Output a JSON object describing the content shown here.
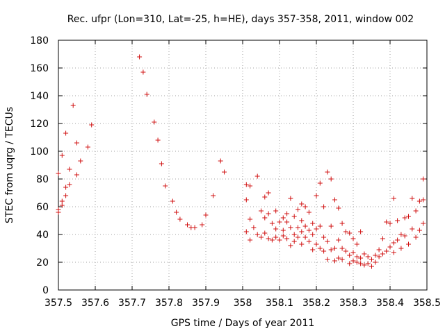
{
  "chart_data": {
    "type": "scatter",
    "title": "Rec. ufpr (Lon=310, Lat=-25, h=HE), days 357-358, 2011, window 002",
    "xlabel": "GPS time / Days of year 2011",
    "ylabel": "STEC from uqrg / TECUs",
    "xlim": [
      357.5,
      358.5
    ],
    "ylim": [
      0,
      180
    ],
    "grid": true,
    "marker": "+",
    "color": "#d01010",
    "x_ticks": [
      357.5,
      357.6,
      357.7,
      357.8,
      357.9,
      358.0,
      358.1,
      358.2,
      358.3,
      358.4,
      358.5
    ],
    "x_tick_labels": [
      "357.5",
      "357.6",
      "357.7",
      "357.8",
      "357.9",
      "358",
      "358.1",
      "358.2",
      "358.3",
      "358.4",
      "358.5"
    ],
    "y_ticks": [
      0,
      20,
      40,
      60,
      80,
      100,
      120,
      140,
      160,
      180
    ],
    "y_tick_labels": [
      "0",
      "20",
      "40",
      "60",
      "80",
      "100",
      "120",
      "140",
      "160",
      "180"
    ],
    "series": [
      {
        "name": "STEC",
        "points": [
          [
            357.5,
            84
          ],
          [
            357.5,
            58
          ],
          [
            357.5,
            56
          ],
          [
            357.51,
            64
          ],
          [
            357.51,
            61
          ],
          [
            357.51,
            97
          ],
          [
            357.52,
            68
          ],
          [
            357.52,
            74
          ],
          [
            357.52,
            113
          ],
          [
            357.53,
            76
          ],
          [
            357.53,
            87
          ],
          [
            357.54,
            133
          ],
          [
            357.55,
            83
          ],
          [
            357.55,
            106
          ],
          [
            357.56,
            93
          ],
          [
            357.58,
            103
          ],
          [
            357.59,
            119
          ],
          [
            357.72,
            168
          ],
          [
            357.73,
            157
          ],
          [
            357.74,
            141
          ],
          [
            357.76,
            121
          ],
          [
            357.77,
            108
          ],
          [
            357.78,
            91
          ],
          [
            357.79,
            75
          ],
          [
            357.81,
            64
          ],
          [
            357.82,
            56
          ],
          [
            357.83,
            51
          ],
          [
            357.85,
            47
          ],
          [
            357.86,
            45
          ],
          [
            357.87,
            45
          ],
          [
            357.89,
            47
          ],
          [
            357.9,
            54
          ],
          [
            357.92,
            68
          ],
          [
            357.94,
            93
          ],
          [
            357.95,
            85
          ],
          [
            358.01,
            76
          ],
          [
            358.01,
            65
          ],
          [
            358.01,
            42
          ],
          [
            358.02,
            75
          ],
          [
            358.02,
            51
          ],
          [
            358.02,
            36
          ],
          [
            358.03,
            45
          ],
          [
            358.04,
            82
          ],
          [
            358.04,
            40
          ],
          [
            358.05,
            38
          ],
          [
            358.05,
            57
          ],
          [
            358.06,
            67
          ],
          [
            358.06,
            52
          ],
          [
            358.06,
            41
          ],
          [
            358.07,
            70
          ],
          [
            358.07,
            55
          ],
          [
            358.07,
            37
          ],
          [
            358.08,
            48
          ],
          [
            358.08,
            36
          ],
          [
            358.09,
            44
          ],
          [
            358.09,
            57
          ],
          [
            358.09,
            38
          ],
          [
            358.1,
            49
          ],
          [
            358.1,
            36
          ],
          [
            358.11,
            52
          ],
          [
            358.11,
            43
          ],
          [
            358.11,
            39
          ],
          [
            358.12,
            55
          ],
          [
            358.12,
            49
          ],
          [
            358.12,
            37
          ],
          [
            358.13,
            66
          ],
          [
            358.13,
            45
          ],
          [
            358.13,
            32
          ],
          [
            358.14,
            53
          ],
          [
            358.14,
            40
          ],
          [
            358.14,
            35
          ],
          [
            358.15,
            58
          ],
          [
            358.15,
            45
          ],
          [
            358.15,
            38
          ],
          [
            358.16,
            62
          ],
          [
            358.16,
            50
          ],
          [
            358.16,
            42
          ],
          [
            358.16,
            33
          ],
          [
            358.17,
            60
          ],
          [
            358.17,
            46
          ],
          [
            358.17,
            38
          ],
          [
            358.18,
            56
          ],
          [
            358.18,
            43
          ],
          [
            358.18,
            35
          ],
          [
            358.19,
            48
          ],
          [
            358.19,
            40
          ],
          [
            358.19,
            29
          ],
          [
            358.2,
            68
          ],
          [
            358.2,
            44
          ],
          [
            358.2,
            33
          ],
          [
            358.21,
            77
          ],
          [
            358.21,
            46
          ],
          [
            358.21,
            30
          ],
          [
            358.22,
            60
          ],
          [
            358.22,
            38
          ],
          [
            358.22,
            28
          ],
          [
            358.23,
            85
          ],
          [
            358.23,
            35
          ],
          [
            358.23,
            22
          ],
          [
            358.24,
            80
          ],
          [
            358.24,
            46
          ],
          [
            358.24,
            29
          ],
          [
            358.25,
            65
          ],
          [
            358.25,
            30
          ],
          [
            358.25,
            21
          ],
          [
            358.26,
            59
          ],
          [
            358.26,
            36
          ],
          [
            358.26,
            23
          ],
          [
            358.27,
            48
          ],
          [
            358.27,
            30
          ],
          [
            358.27,
            22
          ],
          [
            358.28,
            42
          ],
          [
            358.28,
            28
          ],
          [
            358.29,
            41
          ],
          [
            358.29,
            25
          ],
          [
            358.29,
            19
          ],
          [
            358.3,
            37
          ],
          [
            358.3,
            27
          ],
          [
            358.3,
            21
          ],
          [
            358.31,
            33
          ],
          [
            358.31,
            24
          ],
          [
            358.31,
            20
          ],
          [
            358.32,
            42
          ],
          [
            358.32,
            23
          ],
          [
            358.32,
            19
          ],
          [
            358.33,
            26
          ],
          [
            358.33,
            18
          ],
          [
            358.34,
            24
          ],
          [
            358.34,
            19
          ],
          [
            358.35,
            22
          ],
          [
            358.35,
            17
          ],
          [
            358.36,
            25
          ],
          [
            358.36,
            20
          ],
          [
            358.37,
            29
          ],
          [
            358.37,
            24
          ],
          [
            358.38,
            37
          ],
          [
            358.38,
            26
          ],
          [
            358.39,
            49
          ],
          [
            358.39,
            28
          ],
          [
            358.4,
            48
          ],
          [
            358.4,
            31
          ],
          [
            358.41,
            66
          ],
          [
            358.41,
            34
          ],
          [
            358.41,
            27
          ],
          [
            358.42,
            50
          ],
          [
            358.42,
            36
          ],
          [
            358.43,
            40
          ],
          [
            358.43,
            30
          ],
          [
            358.44,
            52
          ],
          [
            358.44,
            39
          ],
          [
            358.45,
            53
          ],
          [
            358.45,
            33
          ],
          [
            358.46,
            66
          ],
          [
            358.46,
            44
          ],
          [
            358.47,
            57
          ],
          [
            358.47,
            38
          ],
          [
            358.48,
            64
          ],
          [
            358.48,
            43
          ],
          [
            358.49,
            65
          ],
          [
            358.49,
            48
          ],
          [
            358.49,
            80
          ]
        ]
      }
    ]
  }
}
